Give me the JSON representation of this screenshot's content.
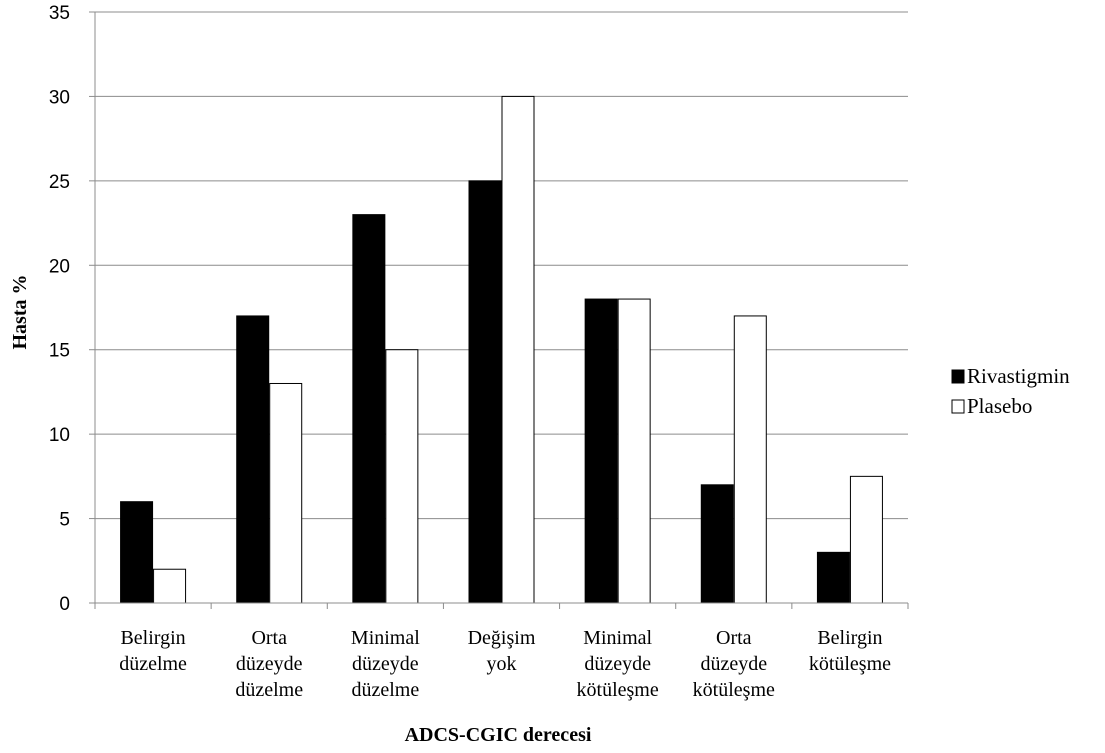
{
  "chart_data": {
    "type": "bar",
    "categories": [
      [
        "Belirgin",
        "düzelme"
      ],
      [
        "Orta",
        "düzeyde",
        "düzelme"
      ],
      [
        "Minimal",
        "düzeyde",
        "düzelme"
      ],
      [
        "Değişim",
        "yok"
      ],
      [
        "Minimal",
        "düzeyde",
        "kötüleşme"
      ],
      [
        "Orta",
        "düzeyde",
        "kötüleşme"
      ],
      [
        "Belirgin",
        "kötüleşme"
      ]
    ],
    "series": [
      {
        "name": "Rivastigmin",
        "values": [
          6,
          17,
          23,
          25,
          18,
          7,
          3
        ],
        "color": "#000000"
      },
      {
        "name": "Plasebo",
        "values": [
          2,
          13,
          15,
          30,
          18,
          17,
          7.5
        ],
        "color": "#ffffff"
      }
    ],
    "xlabel": "ADCS-CGIC derecesi",
    "ylabel": "Hasta  %",
    "ylim": [
      0,
      35
    ],
    "yticks": [
      0,
      5,
      10,
      15,
      20,
      25,
      30,
      35
    ],
    "grid": true,
    "legend": "right"
  }
}
